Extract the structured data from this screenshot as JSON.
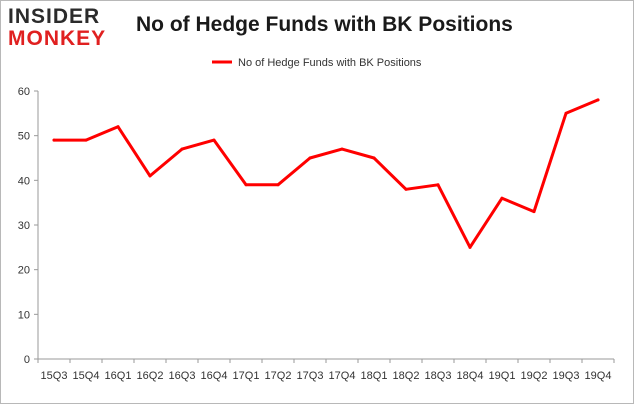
{
  "logo": {
    "line1": "INSIDER",
    "line2": "MONKEY"
  },
  "chart_data": {
    "type": "line",
    "title": "No of Hedge Funds with BK Positions",
    "xlabel": "",
    "ylabel": "",
    "categories": [
      "15Q3",
      "15Q4",
      "16Q1",
      "16Q2",
      "16Q3",
      "16Q4",
      "17Q1",
      "17Q2",
      "17Q3",
      "17Q4",
      "18Q1",
      "18Q2",
      "18Q3",
      "18Q4",
      "19Q1",
      "19Q2",
      "19Q3",
      "19Q4"
    ],
    "series": [
      {
        "name": "No of Hedge Funds with BK Positions",
        "color": "#ff0000",
        "values": [
          49,
          49,
          52,
          41,
          47,
          49,
          39,
          39,
          45,
          47,
          45,
          38,
          39,
          25,
          36,
          33,
          55,
          58
        ]
      }
    ],
    "ylim": [
      0,
      60
    ],
    "yticks": [
      0,
      10,
      20,
      30,
      40,
      50,
      60
    ],
    "grid": false,
    "legend": "top-center"
  }
}
